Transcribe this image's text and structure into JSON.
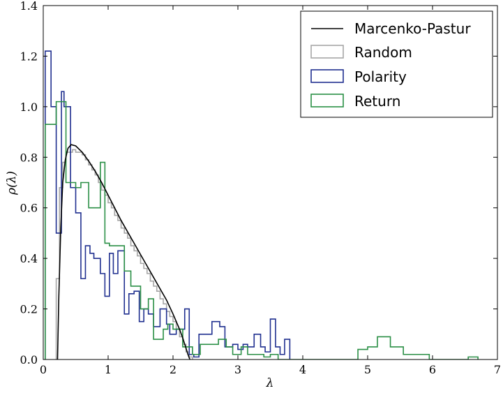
{
  "chart_data": {
    "type": "line",
    "xlabel": "λ",
    "ylabel": "ρ(λ)",
    "xlim": [
      0,
      7
    ],
    "ylim": [
      0,
      1.4
    ],
    "xticks": [
      "0",
      "1",
      "2",
      "3",
      "4",
      "5",
      "6",
      "7"
    ],
    "yticks": [
      "0.0",
      "0.2",
      "0.4",
      "0.6",
      "0.8",
      "1.0",
      "1.2",
      "1.4"
    ],
    "grid": false,
    "legend_position": "top-right",
    "legend": [
      "Marcenko-Pastur",
      "Random",
      "Polarity",
      "Return"
    ],
    "series": [
      {
        "name": "Marcenko-Pastur",
        "kind": "curve",
        "color": "#000000",
        "x": [
          0.22,
          0.24,
          0.27,
          0.3,
          0.34,
          0.38,
          0.43,
          0.5,
          0.6,
          0.7,
          0.8,
          0.9,
          1.0,
          1.1,
          1.2,
          1.3,
          1.4,
          1.5,
          1.6,
          1.7,
          1.8,
          1.9,
          2.0,
          2.05,
          2.1,
          2.15,
          2.2,
          2.23,
          2.26
        ],
        "y": [
          0.0,
          0.25,
          0.52,
          0.7,
          0.79,
          0.835,
          0.85,
          0.845,
          0.82,
          0.785,
          0.745,
          0.7,
          0.65,
          0.6,
          0.55,
          0.505,
          0.46,
          0.415,
          0.37,
          0.325,
          0.28,
          0.235,
          0.18,
          0.15,
          0.12,
          0.085,
          0.045,
          0.02,
          0.0
        ]
      },
      {
        "name": "Random",
        "kind": "step",
        "color": "#a6a6a6",
        "edges": [
          0.2,
          0.25,
          0.3,
          0.35,
          0.4,
          0.45,
          0.5,
          0.55,
          0.6,
          0.65,
          0.7,
          0.75,
          0.8,
          0.85,
          0.9,
          0.95,
          1.0,
          1.05,
          1.1,
          1.15,
          1.2,
          1.25,
          1.3,
          1.35,
          1.4,
          1.45,
          1.5,
          1.55,
          1.6,
          1.65,
          1.7,
          1.75,
          1.8,
          1.85,
          1.9,
          1.95,
          2.0,
          2.05,
          2.1,
          2.15,
          2.2,
          2.25,
          2.3
        ],
        "values": [
          0.32,
          0.68,
          0.78,
          0.82,
          0.82,
          0.83,
          0.82,
          0.82,
          0.81,
          0.79,
          0.77,
          0.75,
          0.73,
          0.7,
          0.67,
          0.65,
          0.62,
          0.6,
          0.57,
          0.55,
          0.52,
          0.5,
          0.48,
          0.45,
          0.43,
          0.41,
          0.38,
          0.36,
          0.34,
          0.31,
          0.29,
          0.27,
          0.24,
          0.22,
          0.19,
          0.17,
          0.15,
          0.12,
          0.09,
          0.06,
          0.03,
          0.01
        ]
      },
      {
        "name": "Polarity",
        "kind": "step",
        "color": "#1f2f8f",
        "edges": [
          0.03,
          0.12,
          0.2,
          0.28,
          0.32,
          0.42,
          0.5,
          0.58,
          0.65,
          0.72,
          0.78,
          0.88,
          0.95,
          1.02,
          1.08,
          1.15,
          1.25,
          1.32,
          1.4,
          1.48,
          1.55,
          1.62,
          1.7,
          1.8,
          1.9,
          1.95,
          2.05,
          2.12,
          2.18,
          2.25,
          2.32,
          2.4,
          2.5,
          2.6,
          2.72,
          2.8,
          2.92,
          3.0,
          3.08,
          3.15,
          3.25,
          3.35,
          3.42,
          3.5,
          3.58,
          3.65,
          3.72,
          3.8
        ],
        "values": [
          1.22,
          1.0,
          0.5,
          1.06,
          1.0,
          0.68,
          0.58,
          0.32,
          0.45,
          0.42,
          0.4,
          0.34,
          0.25,
          0.42,
          0.34,
          0.43,
          0.18,
          0.26,
          0.27,
          0.15,
          0.2,
          0.18,
          0.13,
          0.2,
          0.14,
          0.1,
          0.12,
          0.12,
          0.2,
          0.02,
          0.01,
          0.1,
          0.1,
          0.15,
          0.13,
          0.05,
          0.06,
          0.04,
          0.06,
          0.05,
          0.1,
          0.05,
          0.03,
          0.16,
          0.05,
          0.02,
          0.08
        ]
      },
      {
        "name": "Return",
        "kind": "step",
        "color": "#2a8f45",
        "edges": [
          0.03,
          0.2,
          0.35,
          0.5,
          0.58,
          0.7,
          0.8,
          0.88,
          0.95,
          1.02,
          1.1,
          1.25,
          1.35,
          1.5,
          1.62,
          1.7,
          1.85,
          1.92,
          2.0,
          2.15,
          2.3,
          2.42,
          2.58,
          2.7,
          2.82,
          2.92,
          3.05,
          3.15,
          3.25,
          3.4,
          3.5,
          3.62,
          4.85,
          5.0,
          5.15,
          5.35,
          5.55,
          5.75,
          5.95,
          6.2,
          6.55,
          6.7
        ],
        "values": [
          0.93,
          1.02,
          0.7,
          0.68,
          0.7,
          0.6,
          0.6,
          0.78,
          0.46,
          0.45,
          0.45,
          0.35,
          0.29,
          0.2,
          0.24,
          0.08,
          0.12,
          0.14,
          0.12,
          0.05,
          0.02,
          0.06,
          0.06,
          0.08,
          0.05,
          0.02,
          0.05,
          0.02,
          0.02,
          0.01,
          0.02,
          0.0,
          0.04,
          0.05,
          0.09,
          0.05,
          0.02,
          0.02,
          0.0,
          0.0,
          0.01
        ]
      }
    ]
  }
}
